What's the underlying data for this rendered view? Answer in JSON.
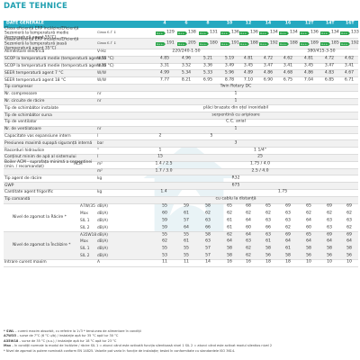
{
  "title": "DATE TEHNICE",
  "header": {
    "label": "DATE GENERALE",
    "models": [
      "4",
      "6",
      "8",
      "10",
      "12",
      "14",
      "16",
      "12T",
      "14T",
      "16T"
    ]
  },
  "rows": [
    {
      "type": "class",
      "label": "Clasa eficiență ERP încălzire/Eficiență Sezonieră la temperatură medie (temperatură agent 55°C)",
      "sub": "Clasa Є-Ѓ ↕",
      "badge": "A++",
      "values": [
        "129",
        "138",
        "131",
        "136",
        "136",
        "134",
        "134",
        "136",
        "134",
        "133"
      ]
    },
    {
      "type": "class",
      "label": "Clasa eficiență ERP încălzire/Eficiență Sezonieră la temperatură joasă (temperatură agent 35°C)",
      "sub": "Clasa Є-Ѓ ↕",
      "badge": "A+++",
      "values": [
        "191",
        "205",
        "180",
        "191",
        "188",
        "192",
        "188",
        "189",
        "185",
        "192"
      ]
    },
    {
      "type": "span",
      "label": "Alimentare electrică",
      "unit": "V-Hz",
      "spans": [
        {
          "text": "220/240-1-50",
          "pos": 203
        },
        {
          "text": "380/415-3-50",
          "pos": 353
        }
      ]
    },
    {
      "type": "vals",
      "label": "SCOP la temperatură medie (temperatură agent 55 °C)",
      "unit": "W/W",
      "values": [
        "4.85",
        "4.96",
        "5.21",
        "5.19",
        "4.81",
        "4.72",
        "4.62",
        "4.81",
        "4.72",
        "4.62"
      ]
    },
    {
      "type": "vals",
      "label": "SCOP la temperatură medie (temperatură agent 35 °C)",
      "unit": "W/W",
      "values": [
        "3.31",
        "3.52",
        "3.36",
        "3.49",
        "3.45",
        "3.47",
        "3.41",
        "3.45",
        "3.47",
        "3.41"
      ]
    },
    {
      "type": "vals",
      "label": "SEER temperatură agent 7 °C",
      "unit": "W/W",
      "values": [
        "4.99",
        "5.34",
        "5.33",
        "5.96",
        "4.89",
        "4.86",
        "4.68",
        "4.86",
        "4.83",
        "4.67"
      ]
    },
    {
      "type": "vals",
      "label": "SEER temperatură agent 18 °C",
      "unit": "W/W",
      "values": [
        "7.77",
        "8.21",
        "6.95",
        "8.78",
        "7.10",
        "6.90",
        "6.75",
        "7.04",
        "6.85",
        "6.71"
      ]
    },
    {
      "type": "span",
      "label": "Tip compresor",
      "unit": "",
      "spans": [
        {
          "text": "Twin Rotary DC",
          "pos": 258
        }
      ]
    },
    {
      "type": "span",
      "label": "Nr. compresoare",
      "unit": "nr",
      "spans": [
        {
          "text": "1",
          "pos": 258
        }
      ]
    },
    {
      "type": "span",
      "label": "Nr. circuite de răcire",
      "unit": "nr",
      "spans": [
        {
          "text": "1",
          "pos": 258
        }
      ]
    },
    {
      "type": "span",
      "label": "Tip de schimbător instalate",
      "unit": "",
      "spans": [
        {
          "text": "plăci brazate din oțel inoxidabil",
          "pos": 258
        }
      ]
    },
    {
      "type": "span",
      "label": "Tip de schimbător sursa",
      "unit": "",
      "spans": [
        {
          "text": "serpentină cu aripioare",
          "pos": 258
        }
      ]
    },
    {
      "type": "span",
      "label": "Tip de ventilator",
      "unit": "",
      "spans": [
        {
          "text": "C.C. axial",
          "pos": 258
        }
      ]
    },
    {
      "type": "span",
      "label": "Nr. de ventilatoare",
      "unit": "nr",
      "spans": [
        {
          "text": "1",
          "pos": 258
        }
      ]
    },
    {
      "type": "span",
      "label": "Capacitate vas expansiune intern",
      "unit": "l",
      "spans": [
        {
          "text": "2",
          "pos": 174
        },
        {
          "text": "5",
          "pos": 231
        }
      ]
    },
    {
      "type": "span",
      "label": "Presiunea maximă supapă siguranță internă",
      "unit": "bar",
      "spans": [
        {
          "text": "3",
          "pos": 258
        }
      ]
    },
    {
      "type": "span",
      "label": "Racorduri hidraulice",
      "unit": "\"",
      "spans": [
        {
          "text": "1",
          "pos": 174
        },
        {
          "text": "1 1/4\"",
          "pos": 285
        }
      ]
    },
    {
      "type": "span",
      "label": "Conținut minim de apă al sistemului",
      "unit": "l",
      "spans": [
        {
          "text": "15",
          "pos": 174
        },
        {
          "text": "25",
          "pos": 285
        }
      ]
    },
    {
      "type": "span2",
      "label": "Boiler ACM - suprafața minimă a serpentinei (min. / recomandat)",
      "units": [
        "ACM",
        "m²"
      ],
      "spans": [
        {
          "text": "1.4 / 2.5",
          "pos": 178
        },
        {
          "text": "1.75 / 4.0",
          "pos": 285
        }
      ]
    },
    {
      "type": "span2",
      "label": "",
      "units": [
        "",
        "m²"
      ],
      "spans": [
        {
          "text": "1.7 / 3.0",
          "pos": 178
        },
        {
          "text": "2.5 / 4.0",
          "pos": 285
        }
      ]
    },
    {
      "type": "span",
      "label": "Tip agent de răcire",
      "unit": "kg",
      "spans": [
        {
          "text": "R32",
          "pos": 258
        }
      ]
    },
    {
      "type": "span",
      "label": "GWP",
      "unit": "",
      "spans": [
        {
          "text": "675",
          "pos": 258
        }
      ]
    },
    {
      "type": "span",
      "label": "Cantitate agent frigorific",
      "unit": "kg",
      "spans": [
        {
          "text": "1.4",
          "pos": 178
        },
        {
          "text": "1.75",
          "pos": 310
        }
      ]
    },
    {
      "type": "span",
      "label": "Tip comandă",
      "unit": "",
      "spans": [
        {
          "text": "cu cablu la distanță",
          "pos": 258
        }
      ]
    },
    {
      "type": "noise",
      "label": "Nivel de zgomot la Răcire *",
      "rows": [
        {
          "sub": "A7W/35",
          "unit": "dB(A)",
          "values": [
            "55",
            "59",
            "58",
            "65",
            "68",
            "65",
            "69",
            "65",
            "69",
            "69"
          ]
        },
        {
          "sub": "Max",
          "unit": "dB(A)",
          "values": [
            "60",
            "61",
            "62",
            "62",
            "62",
            "62",
            "63",
            "62",
            "62",
            "62"
          ]
        },
        {
          "sub": "SIL 1",
          "unit": "dB(A)",
          "values": [
            "59",
            "57",
            "63",
            "61",
            "64",
            "63",
            "63",
            "64",
            "63",
            "63"
          ]
        },
        {
          "sub": "SIL 2",
          "unit": "dB(A)",
          "values": [
            "59",
            "64",
            "66",
            "61",
            "60",
            "66",
            "62",
            "60",
            "63",
            "62"
          ]
        }
      ]
    },
    {
      "type": "noise",
      "label": "Nivel de zgomot la Încălzire *",
      "rows": [
        {
          "sub": "A35W18",
          "unit": "dB(A)",
          "values": [
            "55",
            "55",
            "58",
            "62",
            "64",
            "63",
            "69",
            "65",
            "69",
            "69"
          ]
        },
        {
          "sub": "Max",
          "unit": "dB(A)",
          "values": [
            "62",
            "61",
            "63",
            "64",
            "63",
            "61",
            "64",
            "64",
            "64",
            "64"
          ]
        },
        {
          "sub": "SIL 1",
          "unit": "dB(A)",
          "values": [
            "55",
            "55",
            "57",
            "58",
            "62",
            "58",
            "61",
            "58",
            "58",
            "58"
          ]
        },
        {
          "sub": "SIL 2",
          "unit": "dB(A)",
          "values": [
            "53",
            "55",
            "57",
            "58",
            "62",
            "56",
            "58",
            "56",
            "56",
            "56"
          ]
        }
      ]
    },
    {
      "type": "vals",
      "label": "Intrare curent maxim",
      "unit": "A",
      "values": [
        "11",
        "11",
        "14",
        "16",
        "16",
        "18",
        "18",
        "10",
        "10",
        "10"
      ]
    }
  ],
  "notes": [
    {
      "bold": "* SWL",
      "text": " – curent maxim absorbit, cu referire la 1√3 * tensiunea de alimentare în condiții"
    },
    {
      "bold": "A7W35",
      "text": " – surse de 7°C (6 °C u/b) / instalație apă tur 35 °C apă tur 30 °C"
    },
    {
      "bold": "A35W18",
      "text": " – surse de 35 °C (a.u.) / instalație apă tur 18 °C apă tur 23 °C"
    },
    {
      "bold": "Max",
      "text": " – în condiții normale la modul de încălzire / răcire SIL 1 = atunci când este activată funcția silentioasă nivel 1 SIL 2 = atunci când este activat modul silentios nivel 2"
    },
    {
      "bold": "",
      "text": "* Nivel de zgomot la putere nominală conform EN 14825. Valorile pot varia în funcție de instalație; testat în conformitate cu standardele ISO 3614."
    }
  ]
}
